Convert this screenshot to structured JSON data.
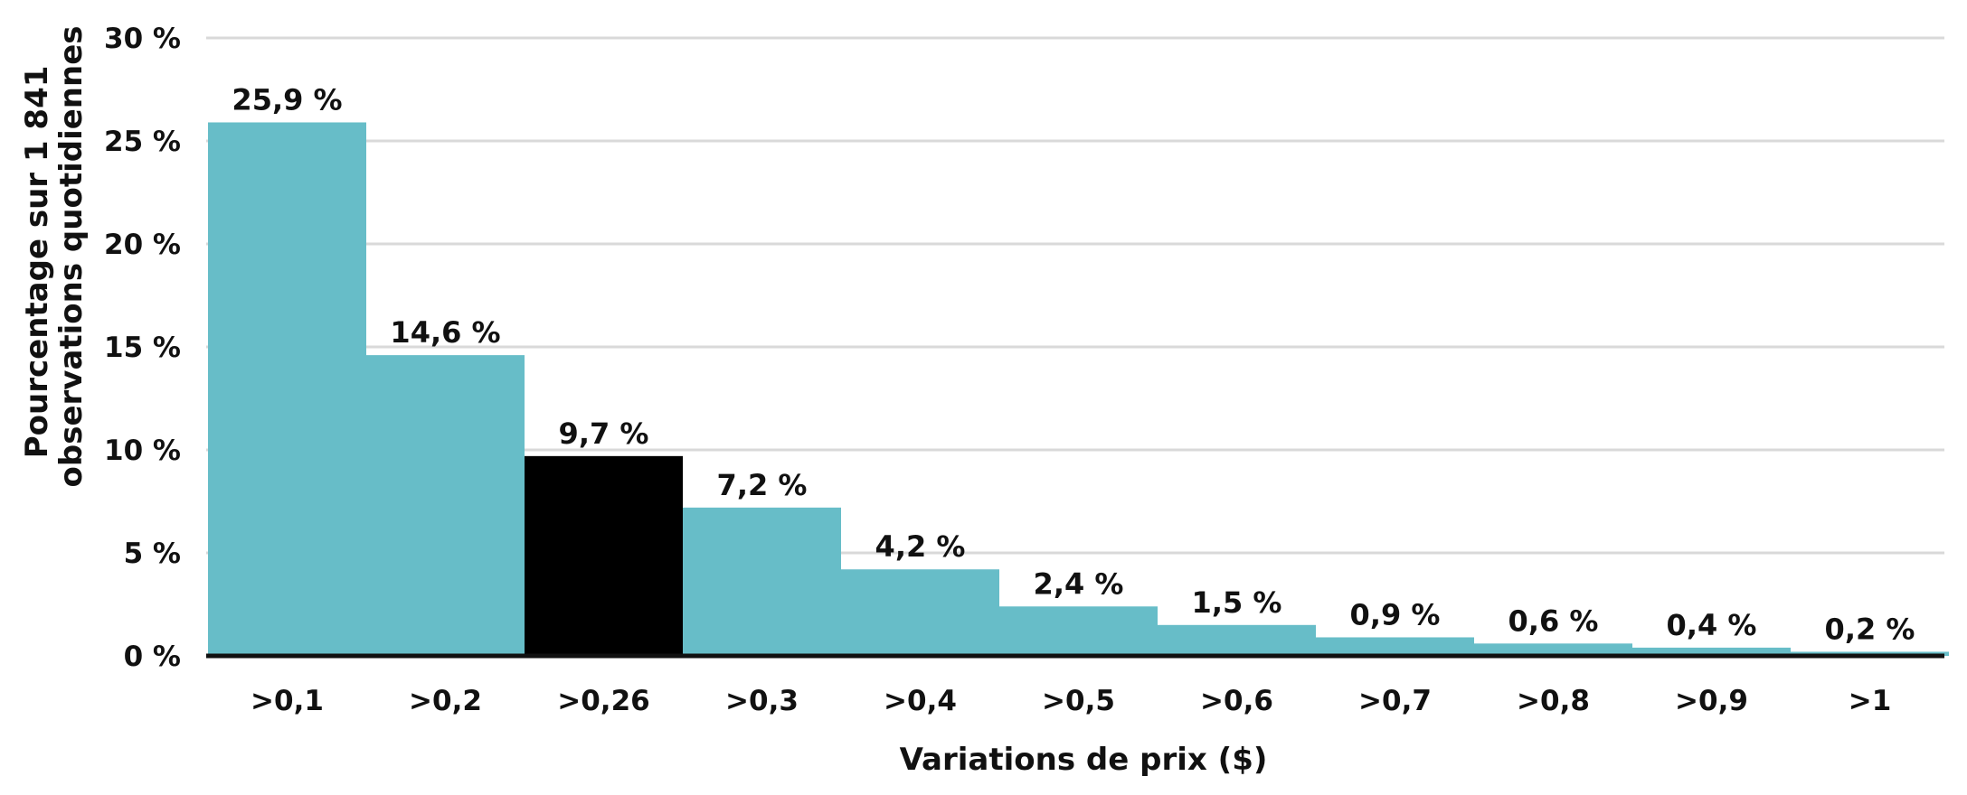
{
  "chart_data": {
    "type": "bar",
    "categories": [
      ">0,1",
      ">0,2",
      ">0,26",
      ">0,3",
      ">0,4",
      ">0,5",
      ">0,6",
      ">0,7",
      ">0,8",
      ">0,9",
      ">1"
    ],
    "values": [
      25.9,
      14.6,
      9.7,
      7.2,
      4.2,
      2.4,
      1.5,
      0.9,
      0.6,
      0.4,
      0.2
    ],
    "data_labels": [
      "25,9 %",
      "14,6 %",
      "9,7 %",
      "7,2 %",
      "4,2 %",
      "2,4 %",
      "1,5 %",
      "0,9 %",
      "0,6 %",
      "0,4 %",
      "0,2 %"
    ],
    "highlight_index": 2,
    "ylim": [
      0,
      30
    ],
    "y_ticks": [
      0,
      5,
      10,
      15,
      20,
      25,
      30
    ],
    "y_tick_labels": [
      "0 %",
      "5 %",
      "10 %",
      "15 %",
      "20 %",
      "25 %",
      "30 %"
    ],
    "xlabel": "Variations de prix ($)",
    "ylabel_lines": [
      "Pourcentage sur 1 841",
      "observations quotidiennes"
    ],
    "grid": true,
    "colors": {
      "bar": "#67bdc8",
      "highlight": "#000000",
      "grid": "#d9d9d9",
      "axis": "#111111"
    }
  }
}
